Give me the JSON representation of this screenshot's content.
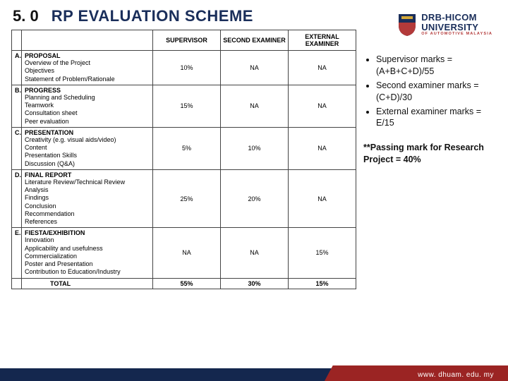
{
  "header": {
    "section_number": "5. 0",
    "title": "RP EVALUATION SCHEME"
  },
  "logo": {
    "line1": "DRB-HICOM",
    "line2": "UNIVERSITY",
    "tagline": "OF AUTOMOTIVE MALAYSIA",
    "shield_top_color": "#1a2e5a",
    "shield_bottom_color": "#b33a3a"
  },
  "table": {
    "headers": {
      "blank": "",
      "item": "",
      "supervisor": "SUPERVISOR",
      "second": "SECOND EXAMINER",
      "external": "EXTERNAL EXAMINER"
    },
    "sections": [
      {
        "label": "A.",
        "title": "PROPOSAL",
        "items": "Overview of the Project\nObjectives\nStatement of Problem/Rationale",
        "supervisor": "10%",
        "second": "NA",
        "external": "NA"
      },
      {
        "label": "B.",
        "title": "PROGRESS",
        "items": "Planning and Scheduling\nTeamwork\nConsultation sheet\nPeer evaluation",
        "supervisor": "15%",
        "second": "NA",
        "external": "NA"
      },
      {
        "label": "C.",
        "title": "PRESENTATION",
        "items": "Creativity (e.g. visual aids/video)\nContent\nPresentation Skills\nDiscussion (Q&A)",
        "supervisor": "5%",
        "second": "10%",
        "external": "NA"
      },
      {
        "label": "D.",
        "title": "FINAL REPORT",
        "items": "Literature Review/Technical Review\nAnalysis\nFindings\nConclusion\nRecommendation\nReferences",
        "supervisor": "25%",
        "second": "20%",
        "external": "NA"
      },
      {
        "label": "E.",
        "title": "FIESTA/EXHIBITION",
        "items": "Innovation\nApplicability and usefulness\nCommercialization\nPoster and Presentation\nContribution to Education/Industry",
        "supervisor": "NA",
        "second": "NA",
        "external": "15%"
      }
    ],
    "total": {
      "label": "TOTAL",
      "supervisor": "55%",
      "second": "30%",
      "external": "15%"
    }
  },
  "side_notes": {
    "bullets": [
      "Supervisor marks = (A+B+C+D)/55",
      "Second examiner marks = (C+D)/30",
      "External examiner marks = E/15"
    ],
    "passing": "**Passing mark for Research Project = 40%"
  },
  "footer": {
    "url": "www. dhuam. edu. my"
  },
  "colors": {
    "title_color": "#1a2e5a",
    "footer_blue": "#14274e",
    "footer_red": "#9b2423",
    "border": "#444444"
  }
}
